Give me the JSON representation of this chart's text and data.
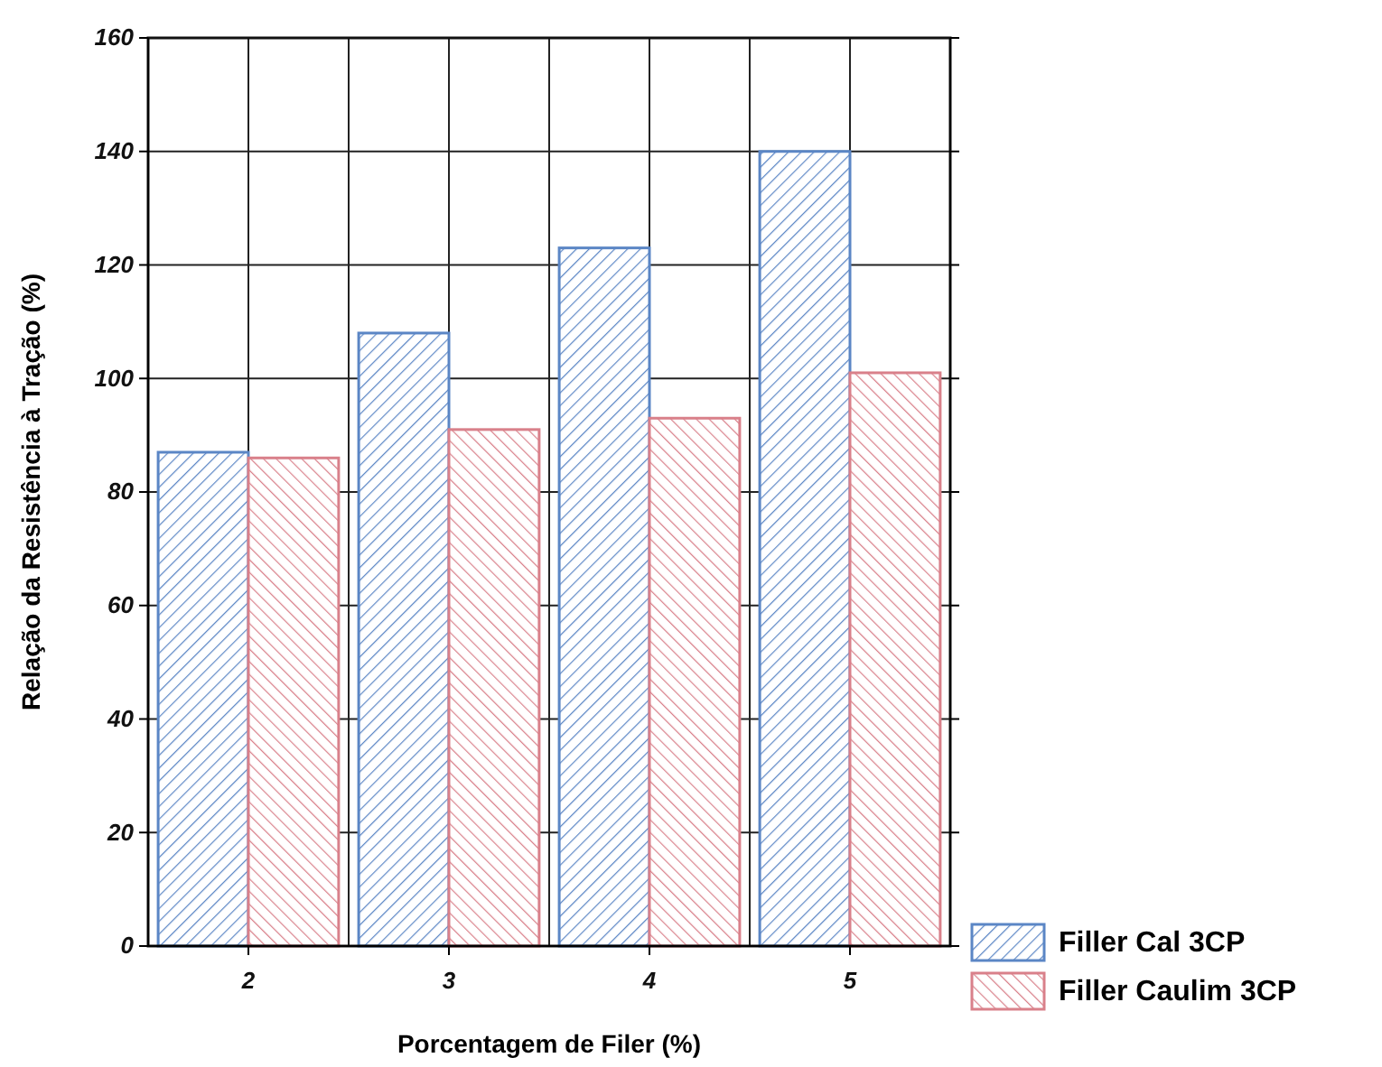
{
  "chart_data": {
    "type": "bar",
    "xlabel": "Porcentagem de Filer (%)",
    "ylabel": "Relação da Resistência à Tração (%)",
    "categories": [
      "2",
      "3",
      "4",
      "5"
    ],
    "series": [
      {
        "name": "Filler Cal 3CP",
        "color": "#5b86c5",
        "values": [
          87,
          108,
          123,
          140
        ]
      },
      {
        "name": "Filler Caulim 3CP",
        "color": "#d9808a",
        "values": [
          86,
          91,
          93,
          101
        ]
      }
    ],
    "ylim": [
      0,
      160
    ],
    "yticks": [
      0,
      20,
      40,
      60,
      80,
      100,
      120,
      140,
      160
    ],
    "grid": true,
    "legend": "bottom right"
  }
}
